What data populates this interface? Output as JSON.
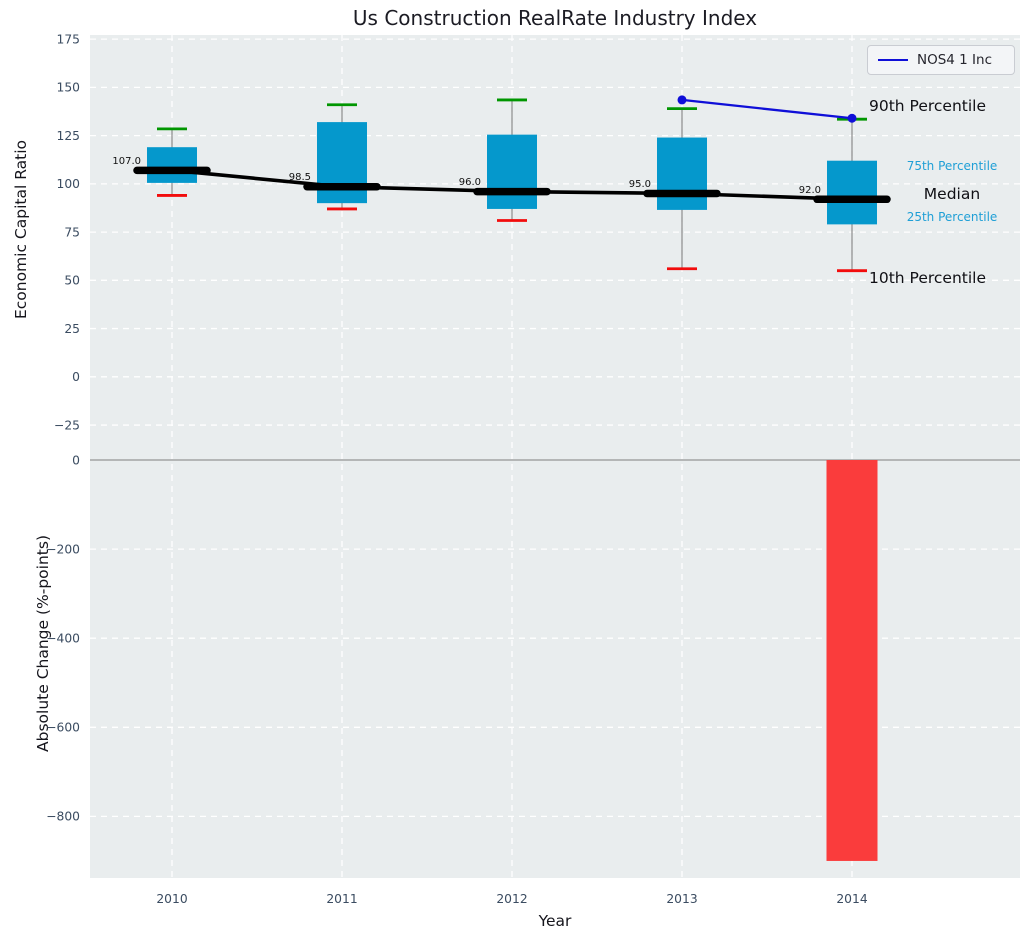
{
  "figure_title": "Us Construction RealRate Industry Index",
  "chart_data": [
    {
      "type": "boxplot",
      "title": "Us Construction RealRate Industry Index",
      "ylabel": "Economic Capital Ratio",
      "ylim": [
        -33,
        177
      ],
      "grid": true,
      "legend_position": "upper right",
      "categories": [
        "2010",
        "2011",
        "2012",
        "2013",
        "2014"
      ],
      "ytick_values": [
        175,
        150,
        125,
        100,
        75,
        50,
        25,
        0,
        -25
      ],
      "ytick_labels": [
        "175",
        "150",
        "125",
        "100",
        "75",
        "50",
        "25",
        "0",
        "−25"
      ],
      "boxes": [
        {
          "year": "2010",
          "p10": 94,
          "p25": 100.5,
          "median": 107.0,
          "p75": 119,
          "p90": 128.5,
          "median_label": "107.0"
        },
        {
          "year": "2011",
          "p10": 87,
          "p25": 90,
          "median": 98.5,
          "p75": 132,
          "p90": 141,
          "median_label": "98.5"
        },
        {
          "year": "2012",
          "p10": 81,
          "p25": 87,
          "median": 96.0,
          "p75": 125.5,
          "p90": 143.5,
          "median_label": "96.0"
        },
        {
          "year": "2013",
          "p10": 56,
          "p25": 86.5,
          "median": 95.0,
          "p75": 124,
          "p90": 139,
          "median_label": "95.0"
        },
        {
          "year": "2014",
          "p10": 55,
          "p25": 79,
          "median": 92.0,
          "p75": 112,
          "p90": 133.5,
          "median_label": "92.0"
        }
      ],
      "series": [
        {
          "name": "NOS4 1 Inc",
          "type": "line",
          "color": "#0f0fd8",
          "x": [
            "2013",
            "2014"
          ],
          "y": [
            143.5,
            134
          ]
        }
      ],
      "annotations": [
        {
          "text": "90th Percentile",
          "color": "#101015"
        },
        {
          "text": "75th Percentile",
          "color": "#1f9fd6"
        },
        {
          "text": "Median",
          "color": "#101015"
        },
        {
          "text": "25th Percentile",
          "color": "#1f9fd6"
        },
        {
          "text": "10th Percentile",
          "color": "#101015"
        }
      ],
      "colors": {
        "box": "#0598cc",
        "cap_top": "#009600",
        "cap_bottom": "#f20c0c",
        "median": "#000000",
        "whisker": "#8a8a8a",
        "background": "#e9edee"
      }
    },
    {
      "type": "bar",
      "ylabel": "Absolute Change (%-points)",
      "xlabel": "Year",
      "ylim": [
        -938,
        42
      ],
      "grid": true,
      "categories": [
        "2010",
        "2011",
        "2012",
        "2013",
        "2014"
      ],
      "values": [
        0,
        0,
        0,
        0,
        -900
      ],
      "ytick_values": [
        0,
        -200,
        -400,
        -600,
        -800
      ],
      "ytick_labels": [
        "0",
        "−200",
        "−400",
        "−600",
        "−800"
      ],
      "bar_color": "#fa3c3c"
    }
  ]
}
